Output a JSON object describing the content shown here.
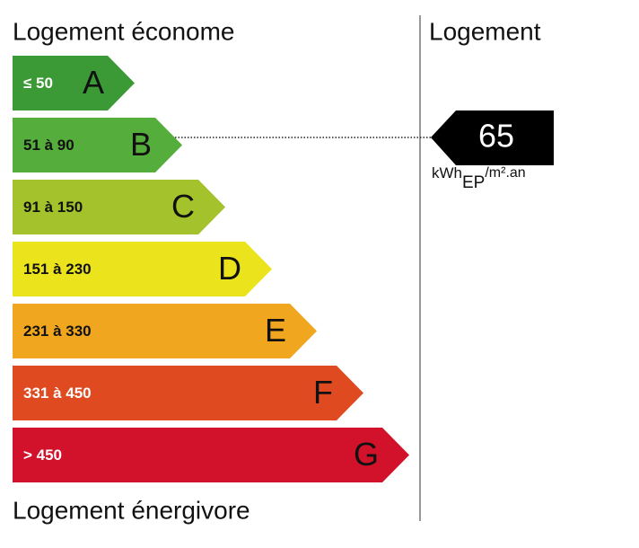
{
  "header": {
    "left_title": "Logement économe",
    "right_title": "Logement"
  },
  "footer": {
    "title": "Logement énergivore"
  },
  "classes": [
    {
      "range": "≤ 50",
      "letter": "A",
      "color": "#3b9a35",
      "text_color": "#ffffff"
    },
    {
      "range": "51 à 90",
      "letter": "B",
      "color": "#55ad3b",
      "text_color": "#111111"
    },
    {
      "range": "91 à 150",
      "letter": "C",
      "color": "#a3c22b",
      "text_color": "#111111"
    },
    {
      "range": "151 à 230",
      "letter": "D",
      "color": "#ebe31c",
      "text_color": "#111111"
    },
    {
      "range": "231 à 330",
      "letter": "E",
      "color": "#f0a61f",
      "text_color": "#111111"
    },
    {
      "range": "331 à 450",
      "letter": "F",
      "color": "#df4a20",
      "text_color": "#ffffff"
    },
    {
      "range": "> 450",
      "letter": "G",
      "color": "#d1122a",
      "text_color": "#ffffff"
    }
  ],
  "indicator": {
    "value": "65",
    "unit": "kWh",
    "unit_sub": "EP",
    "unit_tail": "/m².an"
  }
}
